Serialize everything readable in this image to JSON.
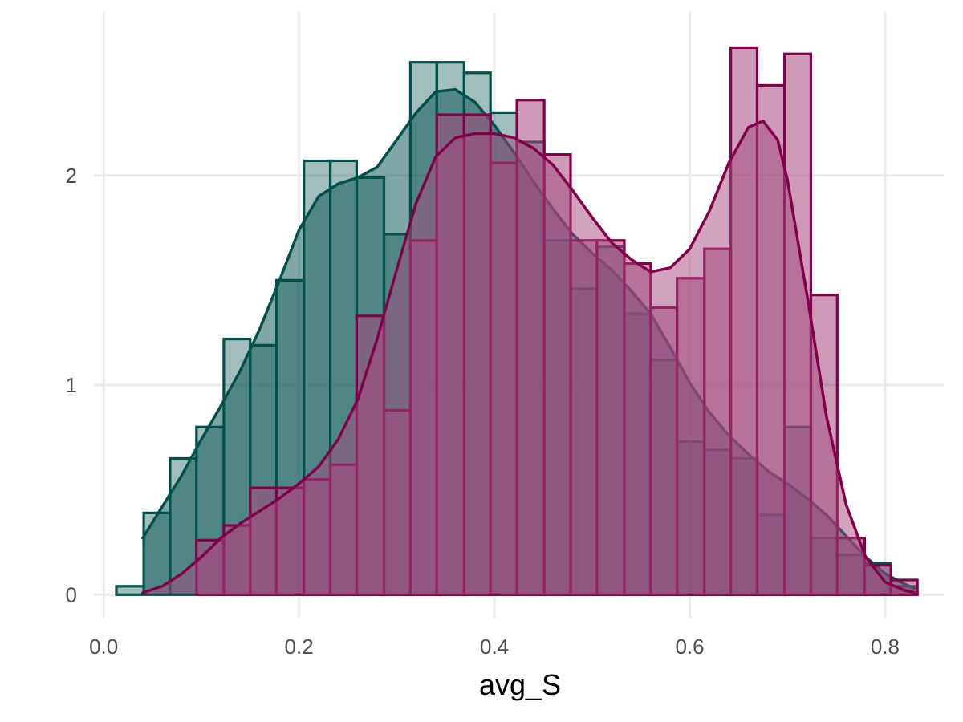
{
  "chart_data": {
    "type": "histogram",
    "title": "",
    "xlabel": "avg_S",
    "ylabel": "",
    "xlim": [
      -0.01,
      0.86
    ],
    "ylim": [
      -0.11,
      2.78
    ],
    "x_ticks": [
      {
        "value": 0.0,
        "label": "0.0"
      },
      {
        "value": 0.2,
        "label": "0.2"
      },
      {
        "value": 0.4,
        "label": "0.4"
      },
      {
        "value": 0.6,
        "label": "0.6"
      },
      {
        "value": 0.8,
        "label": "0.8"
      }
    ],
    "y_ticks": [
      {
        "value": 0,
        "label": "0"
      },
      {
        "value": 1,
        "label": "1"
      },
      {
        "value": 2,
        "label": "2"
      }
    ],
    "grid": true,
    "legend": "none",
    "bin_width": 0.0273,
    "series": [
      {
        "color": "#00504b",
        "fill": "#00504b",
        "fill_opacity": 0.37,
        "bins": [
          {
            "x0": 0.013,
            "x1": 0.041,
            "density": 0.04
          },
          {
            "x0": 0.041,
            "x1": 0.068,
            "density": 0.39
          },
          {
            "x0": 0.068,
            "x1": 0.095,
            "density": 0.65
          },
          {
            "x0": 0.095,
            "x1": 0.123,
            "density": 0.8
          },
          {
            "x0": 0.123,
            "x1": 0.15,
            "density": 1.22
          },
          {
            "x0": 0.15,
            "x1": 0.177,
            "density": 1.19
          },
          {
            "x0": 0.177,
            "x1": 0.205,
            "density": 1.5
          },
          {
            "x0": 0.205,
            "x1": 0.232,
            "density": 2.07
          },
          {
            "x0": 0.232,
            "x1": 0.259,
            "density": 2.07
          },
          {
            "x0": 0.259,
            "x1": 0.287,
            "density": 1.99
          },
          {
            "x0": 0.287,
            "x1": 0.314,
            "density": 1.72
          },
          {
            "x0": 0.314,
            "x1": 0.341,
            "density": 2.54
          },
          {
            "x0": 0.341,
            "x1": 0.369,
            "density": 2.54
          },
          {
            "x0": 0.369,
            "x1": 0.396,
            "density": 2.49
          },
          {
            "x0": 0.396,
            "x1": 0.423,
            "density": 2.3
          },
          {
            "x0": 0.423,
            "x1": 0.451,
            "density": 2.16
          },
          {
            "x0": 0.451,
            "x1": 0.478,
            "density": 1.69
          },
          {
            "x0": 0.478,
            "x1": 0.505,
            "density": 1.46
          },
          {
            "x0": 0.505,
            "x1": 0.533,
            "density": 1.66
          },
          {
            "x0": 0.533,
            "x1": 0.56,
            "density": 1.34
          },
          {
            "x0": 0.56,
            "x1": 0.587,
            "density": 1.12
          },
          {
            "x0": 0.587,
            "x1": 0.615,
            "density": 0.73
          },
          {
            "x0": 0.615,
            "x1": 0.642,
            "density": 0.69
          },
          {
            "x0": 0.642,
            "x1": 0.669,
            "density": 0.65
          },
          {
            "x0": 0.669,
            "x1": 0.697,
            "density": 0.38
          },
          {
            "x0": 0.697,
            "x1": 0.724,
            "density": 0.8
          },
          {
            "x0": 0.724,
            "x1": 0.751,
            "density": 0.27
          },
          {
            "x0": 0.751,
            "x1": 0.779,
            "density": 0.19
          },
          {
            "x0": 0.779,
            "x1": 0.806,
            "density": 0.15
          },
          {
            "x0": 0.806,
            "x1": 0.833,
            "density": 0.04
          }
        ],
        "density_curve": {
          "x": [
            0.04,
            0.06,
            0.08,
            0.1,
            0.12,
            0.14,
            0.16,
            0.18,
            0.2,
            0.22,
            0.24,
            0.26,
            0.28,
            0.3,
            0.32,
            0.34,
            0.36,
            0.38,
            0.4,
            0.42,
            0.44,
            0.46,
            0.48,
            0.5,
            0.52,
            0.54,
            0.56,
            0.58,
            0.6,
            0.62,
            0.64,
            0.66,
            0.68,
            0.7,
            0.72,
            0.74,
            0.76,
            0.78,
            0.8,
            0.82,
            0.83
          ],
          "y": [
            0.27,
            0.42,
            0.57,
            0.74,
            0.9,
            1.07,
            1.27,
            1.5,
            1.74,
            1.9,
            1.96,
            1.99,
            2.04,
            2.17,
            2.3,
            2.4,
            2.41,
            2.35,
            2.24,
            2.11,
            1.97,
            1.84,
            1.72,
            1.63,
            1.55,
            1.45,
            1.34,
            1.18,
            1.01,
            0.87,
            0.76,
            0.67,
            0.59,
            0.53,
            0.46,
            0.38,
            0.28,
            0.18,
            0.1,
            0.05,
            0.03
          ]
        }
      },
      {
        "color": "#84004a",
        "fill": "#a4477c",
        "fill_opacity": 0.55,
        "bins": [
          {
            "x0": 0.041,
            "x1": 0.068,
            "density": 0.0
          },
          {
            "x0": 0.068,
            "x1": 0.095,
            "density": 0.0
          },
          {
            "x0": 0.095,
            "x1": 0.123,
            "density": 0.26
          },
          {
            "x0": 0.123,
            "x1": 0.15,
            "density": 0.33
          },
          {
            "x0": 0.15,
            "x1": 0.177,
            "density": 0.51
          },
          {
            "x0": 0.177,
            "x1": 0.205,
            "density": 0.51
          },
          {
            "x0": 0.205,
            "x1": 0.232,
            "density": 0.55
          },
          {
            "x0": 0.232,
            "x1": 0.259,
            "density": 0.62
          },
          {
            "x0": 0.259,
            "x1": 0.287,
            "density": 1.33
          },
          {
            "x0": 0.287,
            "x1": 0.314,
            "density": 0.88
          },
          {
            "x0": 0.314,
            "x1": 0.341,
            "density": 1.69
          },
          {
            "x0": 0.341,
            "x1": 0.369,
            "density": 2.29
          },
          {
            "x0": 0.369,
            "x1": 0.396,
            "density": 2.29
          },
          {
            "x0": 0.396,
            "x1": 0.423,
            "density": 2.06
          },
          {
            "x0": 0.423,
            "x1": 0.451,
            "density": 2.36
          },
          {
            "x0": 0.451,
            "x1": 0.478,
            "density": 2.1
          },
          {
            "x0": 0.478,
            "x1": 0.505,
            "density": 1.69
          },
          {
            "x0": 0.505,
            "x1": 0.533,
            "density": 1.69
          },
          {
            "x0": 0.533,
            "x1": 0.56,
            "density": 1.58
          },
          {
            "x0": 0.56,
            "x1": 0.587,
            "density": 1.37
          },
          {
            "x0": 0.587,
            "x1": 0.615,
            "density": 1.51
          },
          {
            "x0": 0.615,
            "x1": 0.642,
            "density": 1.65
          },
          {
            "x0": 0.642,
            "x1": 0.669,
            "density": 2.61
          },
          {
            "x0": 0.669,
            "x1": 0.697,
            "density": 2.43
          },
          {
            "x0": 0.697,
            "x1": 0.724,
            "density": 2.58
          },
          {
            "x0": 0.724,
            "x1": 0.751,
            "density": 1.43
          },
          {
            "x0": 0.751,
            "x1": 0.779,
            "density": 0.27
          },
          {
            "x0": 0.779,
            "x1": 0.806,
            "density": 0.14
          },
          {
            "x0": 0.806,
            "x1": 0.833,
            "density": 0.07
          }
        ],
        "density_curve": {
          "x": [
            0.04,
            0.06,
            0.08,
            0.1,
            0.12,
            0.14,
            0.16,
            0.18,
            0.2,
            0.22,
            0.24,
            0.26,
            0.28,
            0.3,
            0.32,
            0.34,
            0.36,
            0.38,
            0.4,
            0.42,
            0.44,
            0.46,
            0.48,
            0.5,
            0.52,
            0.54,
            0.56,
            0.58,
            0.6,
            0.62,
            0.64,
            0.66,
            0.675,
            0.69,
            0.7,
            0.72,
            0.74,
            0.76,
            0.78,
            0.8,
            0.82,
            0.83
          ],
          "y": [
            0.01,
            0.04,
            0.1,
            0.18,
            0.27,
            0.34,
            0.4,
            0.46,
            0.53,
            0.61,
            0.74,
            0.93,
            1.22,
            1.55,
            1.87,
            2.09,
            2.18,
            2.2,
            2.2,
            2.18,
            2.13,
            2.05,
            1.93,
            1.8,
            1.68,
            1.6,
            1.54,
            1.56,
            1.65,
            1.83,
            2.06,
            2.23,
            2.26,
            2.17,
            1.98,
            1.43,
            0.85,
            0.43,
            0.18,
            0.06,
            0.02,
            0.01
          ]
        }
      }
    ]
  }
}
